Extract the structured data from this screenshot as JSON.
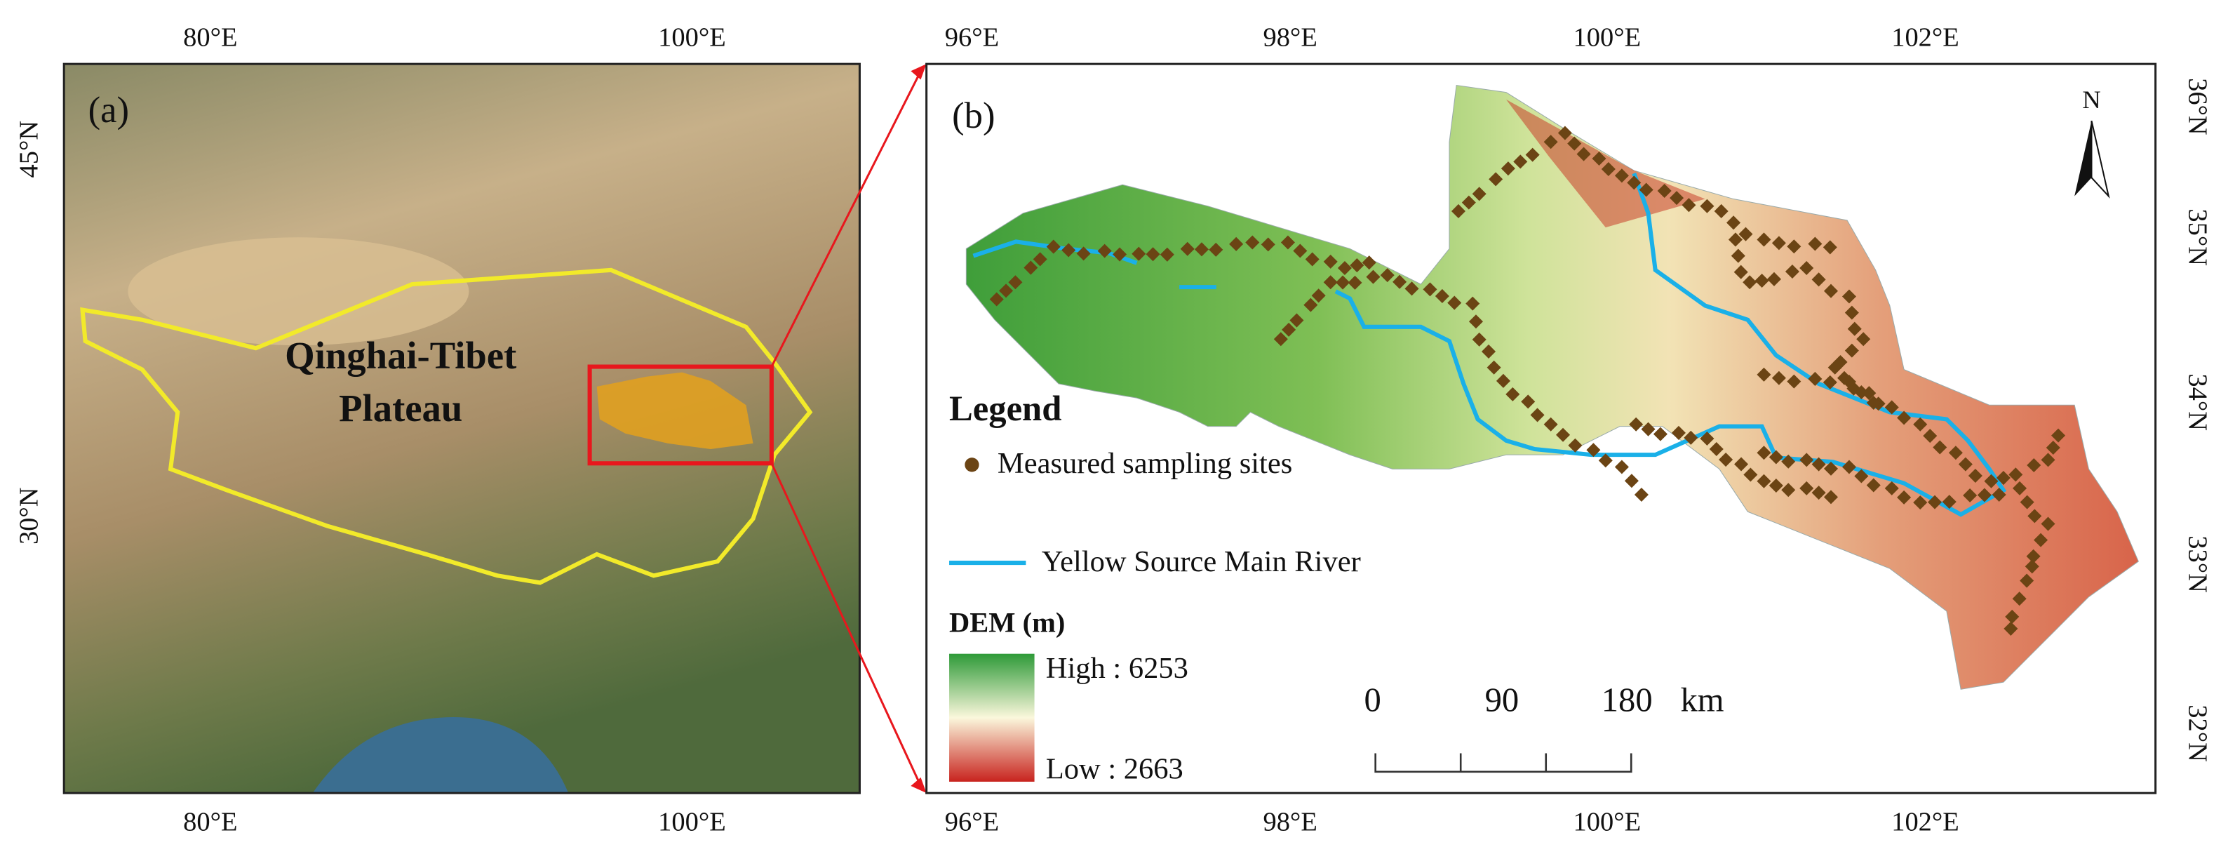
{
  "panel_a": {
    "label": "(a)",
    "region_label": [
      "Qinghai-Tibet",
      "Plateau"
    ],
    "top_ticks": [
      "80°E",
      "100°E"
    ],
    "bottom_ticks": [
      "80°E",
      "100°E"
    ],
    "left_ticks": [
      "45°N",
      "30°N"
    ]
  },
  "panel_b": {
    "label": "(b)",
    "north": "N",
    "top_ticks": [
      "96°E",
      "98°E",
      "100°E",
      "102°E"
    ],
    "bottom_ticks": [
      "96°E",
      "98°E",
      "100°E",
      "102°E"
    ],
    "right_ticks": [
      "36°N",
      "35°N",
      "34°N",
      "33°N",
      "32°N"
    ],
    "legend": {
      "title": "Legend",
      "items": [
        "Measured sampling sites",
        "Yellow Source Main River"
      ]
    },
    "dem": {
      "title": "DEM (m)",
      "high": "High : 6253",
      "low": "Low : 2663"
    },
    "scale_bar": {
      "labels": [
        "0",
        "90",
        "180"
      ],
      "unit": "km"
    }
  }
}
